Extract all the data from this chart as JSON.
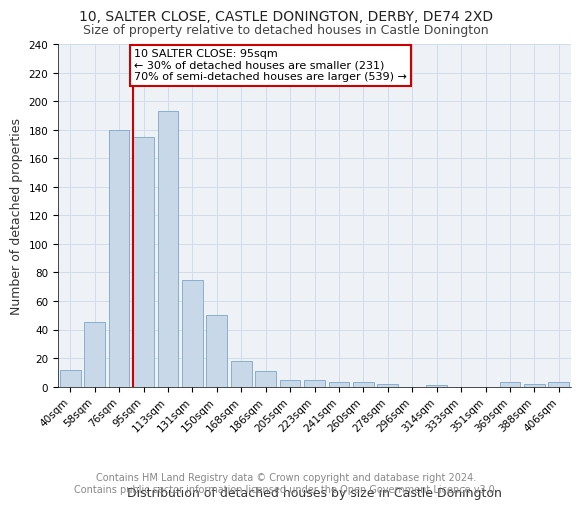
{
  "title1": "10, SALTER CLOSE, CASTLE DONINGTON, DERBY, DE74 2XD",
  "title2": "Size of property relative to detached houses in Castle Donington",
  "xlabel": "Distribution of detached houses by size in Castle Donington",
  "ylabel": "Number of detached properties",
  "categories": [
    "40sqm",
    "58sqm",
    "76sqm",
    "95sqm",
    "113sqm",
    "131sqm",
    "150sqm",
    "168sqm",
    "186sqm",
    "205sqm",
    "223sqm",
    "241sqm",
    "260sqm",
    "278sqm",
    "296sqm",
    "314sqm",
    "333sqm",
    "351sqm",
    "369sqm",
    "388sqm",
    "406sqm"
  ],
  "values": [
    12,
    45,
    180,
    175,
    193,
    75,
    50,
    18,
    11,
    5,
    5,
    3,
    3,
    2,
    0,
    1,
    0,
    0,
    3,
    2,
    3
  ],
  "bar_color": "#c8d8e8",
  "bar_edge_color": "#7aa8c8",
  "vline_bar_index": 3,
  "vline_color": "#cc0000",
  "annotation_text": "10 SALTER CLOSE: 95sqm\n← 30% of detached houses are smaller (231)\n70% of semi-detached houses are larger (539) →",
  "annotation_box_edge_color": "#cc0000",
  "ylim": [
    0,
    240
  ],
  "yticks": [
    0,
    20,
    40,
    60,
    80,
    100,
    120,
    140,
    160,
    180,
    200,
    220,
    240
  ],
  "grid_color": "#d0dce8",
  "background_color": "#eef2f7",
  "footer_text": "Contains HM Land Registry data © Crown copyright and database right 2024.\nContains public sector information licensed under the Open Government Licence v3.0.",
  "title1_fontsize": 10,
  "title2_fontsize": 9,
  "xlabel_fontsize": 9,
  "ylabel_fontsize": 9,
  "tick_fontsize": 7.5,
  "annotation_fontsize": 8,
  "footer_fontsize": 7
}
